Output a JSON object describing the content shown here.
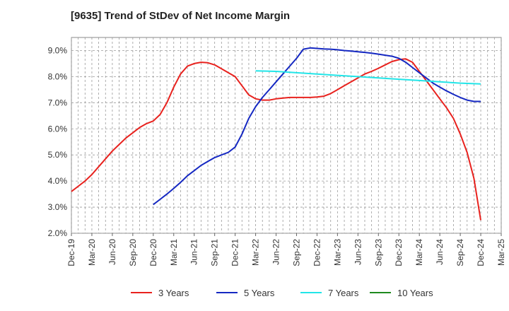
{
  "chart_data": {
    "type": "line",
    "title": "[9635]  Trend of StDev of Net Income Margin",
    "xlabel": "",
    "ylabel": "",
    "x_ticks": [
      "Dec-19",
      "Mar-20",
      "Jun-20",
      "Sep-20",
      "Dec-20",
      "Mar-21",
      "Jun-21",
      "Sep-21",
      "Dec-21",
      "Mar-22",
      "Jun-22",
      "Sep-22",
      "Dec-22",
      "Mar-23",
      "Jun-23",
      "Sep-23",
      "Dec-23",
      "Mar-24",
      "Jun-24",
      "Sep-24",
      "Dec-24",
      "Mar-25"
    ],
    "y_ticks": [
      "2.0%",
      "3.0%",
      "4.0%",
      "5.0%",
      "6.0%",
      "7.0%",
      "8.0%",
      "9.0%"
    ],
    "ylim": [
      2.0,
      9.5
    ],
    "grid": true,
    "legend_position": "bottom",
    "series": [
      {
        "name": "3 Years",
        "color": "#e8221e",
        "x": [
          "Dec-19",
          "Jan-20",
          "Feb-20",
          "Mar-20",
          "Apr-20",
          "May-20",
          "Jun-20",
          "Jul-20",
          "Aug-20",
          "Sep-20",
          "Oct-20",
          "Nov-20",
          "Dec-20",
          "Jan-21",
          "Feb-21",
          "Mar-21",
          "Apr-21",
          "May-21",
          "Jun-21",
          "Jul-21",
          "Aug-21",
          "Sep-21",
          "Oct-21",
          "Nov-21",
          "Dec-21",
          "Jan-22",
          "Feb-22",
          "Mar-22",
          "Apr-22",
          "May-22",
          "Jun-22",
          "Jul-22",
          "Aug-22",
          "Sep-22",
          "Oct-22",
          "Nov-22",
          "Dec-22",
          "Jan-23",
          "Feb-23",
          "Mar-23",
          "Apr-23",
          "May-23",
          "Jun-23",
          "Jul-23",
          "Aug-23",
          "Sep-23",
          "Oct-23",
          "Nov-23",
          "Dec-23",
          "Jan-24",
          "Feb-24",
          "Mar-24",
          "Apr-24",
          "May-24",
          "Jun-24",
          "Jul-24",
          "Aug-24",
          "Sep-24",
          "Oct-24",
          "Nov-24",
          "Dec-24"
        ],
        "values": [
          3.6,
          3.8,
          4.0,
          4.25,
          4.55,
          4.85,
          5.15,
          5.4,
          5.65,
          5.85,
          6.05,
          6.2,
          6.3,
          6.55,
          7.0,
          7.6,
          8.1,
          8.4,
          8.5,
          8.55,
          8.53,
          8.45,
          8.3,
          8.15,
          8.0,
          7.65,
          7.3,
          7.15,
          7.1,
          7.1,
          7.15,
          7.18,
          7.2,
          7.2,
          7.2,
          7.2,
          7.22,
          7.25,
          7.35,
          7.5,
          7.65,
          7.8,
          7.95,
          8.1,
          8.2,
          8.32,
          8.45,
          8.58,
          8.65,
          8.68,
          8.55,
          8.2,
          7.85,
          7.5,
          7.15,
          6.8,
          6.4,
          5.8,
          5.1,
          4.1,
          2.5
        ]
      },
      {
        "name": "5 Years",
        "color": "#1528c2",
        "x": [
          "Dec-20",
          "Jan-21",
          "Feb-21",
          "Mar-21",
          "Apr-21",
          "May-21",
          "Jun-21",
          "Jul-21",
          "Aug-21",
          "Sep-21",
          "Oct-21",
          "Nov-21",
          "Dec-21",
          "Jan-22",
          "Feb-22",
          "Mar-22",
          "Apr-22",
          "May-22",
          "Jun-22",
          "Jul-22",
          "Aug-22",
          "Sep-22",
          "Oct-22",
          "Nov-22",
          "Dec-22",
          "Jan-23",
          "Feb-23",
          "Mar-23",
          "Apr-23",
          "May-23",
          "Jun-23",
          "Jul-23",
          "Aug-23",
          "Sep-23",
          "Oct-23",
          "Nov-23",
          "Dec-23",
          "Jan-24",
          "Feb-24",
          "Mar-24",
          "Apr-24",
          "May-24",
          "Jun-24",
          "Jul-24",
          "Aug-24",
          "Sep-24",
          "Oct-24",
          "Nov-24",
          "Dec-24"
        ],
        "values": [
          3.1,
          3.3,
          3.5,
          3.72,
          3.95,
          4.2,
          4.4,
          4.6,
          4.75,
          4.9,
          5.0,
          5.1,
          5.3,
          5.8,
          6.4,
          6.85,
          7.2,
          7.5,
          7.8,
          8.1,
          8.4,
          8.7,
          9.05,
          9.1,
          9.08,
          9.06,
          9.05,
          9.03,
          9.0,
          8.98,
          8.95,
          8.93,
          8.9,
          8.86,
          8.82,
          8.78,
          8.7,
          8.55,
          8.35,
          8.15,
          7.95,
          7.75,
          7.6,
          7.45,
          7.32,
          7.2,
          7.1,
          7.05,
          7.05
        ]
      },
      {
        "name": "7 Years",
        "color": "#22e5e8",
        "x": [
          "Mar-22",
          "Jun-22",
          "Sep-22",
          "Dec-22",
          "Mar-23",
          "Jun-23",
          "Sep-23",
          "Dec-23",
          "Mar-24",
          "Jun-24",
          "Sep-24",
          "Dec-24"
        ],
        "values": [
          8.22,
          8.2,
          8.15,
          8.1,
          8.05,
          8.0,
          7.95,
          7.9,
          7.85,
          7.8,
          7.75,
          7.72
        ]
      },
      {
        "name": "10 Years",
        "color": "#1f8a1f",
        "x": [],
        "values": []
      }
    ]
  }
}
